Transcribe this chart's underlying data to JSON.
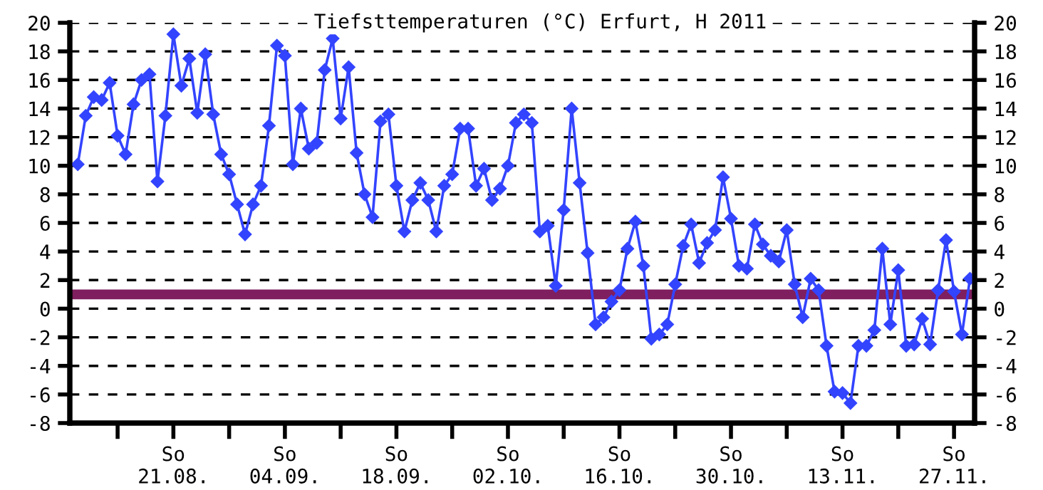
{
  "chart_data": {
    "type": "line",
    "title": "Tiefsttemperaturen (°C) Erfurt, H 2011",
    "x": [
      "2011-08-09",
      "2011-08-10",
      "2011-08-11",
      "2011-08-12",
      "2011-08-13",
      "2011-08-14",
      "2011-08-15",
      "2011-08-16",
      "2011-08-17",
      "2011-08-18",
      "2011-08-19",
      "2011-08-20",
      "2011-08-21",
      "2011-08-22",
      "2011-08-23",
      "2011-08-24",
      "2011-08-25",
      "2011-08-26",
      "2011-08-27",
      "2011-08-28",
      "2011-08-29",
      "2011-08-30",
      "2011-08-31",
      "2011-09-01",
      "2011-09-02",
      "2011-09-03",
      "2011-09-04",
      "2011-09-05",
      "2011-09-06",
      "2011-09-07",
      "2011-09-08",
      "2011-09-09",
      "2011-09-10",
      "2011-09-11",
      "2011-09-12",
      "2011-09-13",
      "2011-09-14",
      "2011-09-15",
      "2011-09-16",
      "2011-09-17",
      "2011-09-18",
      "2011-09-19",
      "2011-09-20",
      "2011-09-21",
      "2011-09-22",
      "2011-09-23",
      "2011-09-24",
      "2011-09-25",
      "2011-09-26",
      "2011-09-27",
      "2011-09-28",
      "2011-09-29",
      "2011-09-30",
      "2011-10-01",
      "2011-10-02",
      "2011-10-03",
      "2011-10-04",
      "2011-10-05",
      "2011-10-06",
      "2011-10-07",
      "2011-10-08",
      "2011-10-09",
      "2011-10-10",
      "2011-10-11",
      "2011-10-12",
      "2011-10-13",
      "2011-10-14",
      "2011-10-15",
      "2011-10-16",
      "2011-10-17",
      "2011-10-18",
      "2011-10-19",
      "2011-10-20",
      "2011-10-21",
      "2011-10-22",
      "2011-10-23",
      "2011-10-24",
      "2011-10-25",
      "2011-10-26",
      "2011-10-27",
      "2011-10-28",
      "2011-10-29",
      "2011-10-30",
      "2011-10-31",
      "2011-11-01",
      "2011-11-02",
      "2011-11-03",
      "2011-11-04",
      "2011-11-05",
      "2011-11-06",
      "2011-11-07",
      "2011-11-08",
      "2011-11-09",
      "2011-11-10",
      "2011-11-11",
      "2011-11-12",
      "2011-11-13",
      "2011-11-14",
      "2011-11-15",
      "2011-11-16",
      "2011-11-17",
      "2011-11-18",
      "2011-11-19",
      "2011-11-20",
      "2011-11-21",
      "2011-11-22",
      "2011-11-23",
      "2011-11-24",
      "2011-11-25",
      "2011-11-26",
      "2011-11-27",
      "2011-11-28",
      "2011-11-29"
    ],
    "series": [
      {
        "color": "#3344ff",
        "values": [
          10.1,
          13.5,
          14.8,
          14.6,
          15.8,
          12.1,
          10.8,
          14.3,
          16.0,
          16.4,
          8.9,
          13.5,
          19.2,
          15.6,
          17.5,
          13.7,
          17.8,
          13.6,
          10.8,
          9.4,
          7.3,
          5.2,
          7.3,
          8.6,
          12.8,
          18.4,
          17.7,
          10.1,
          14.0,
          11.2,
          11.6,
          16.7,
          18.9,
          13.3,
          16.9,
          10.9,
          8.0,
          6.4,
          13.1,
          13.6,
          8.6,
          5.4,
          7.6,
          8.8,
          7.6,
          5.4,
          8.6,
          9.4,
          12.6,
          12.6,
          8.6,
          9.8,
          7.6,
          8.4,
          10.0,
          13.0,
          13.6,
          13.0,
          5.4,
          5.8,
          1.6,
          6.9,
          14.0,
          8.8,
          3.9,
          -1.1,
          -0.6,
          0.5,
          1.3,
          4.2,
          6.1,
          3.0,
          -2.1,
          -1.8,
          -1.1,
          1.7,
          4.4,
          5.9,
          3.2,
          4.6,
          5.5,
          9.2,
          6.3,
          3.0,
          2.8,
          5.9,
          4.5,
          3.7,
          3.3,
          5.5,
          1.7,
          -0.6,
          2.1,
          1.3,
          -2.6,
          -5.8,
          -5.9,
          -6.6,
          -2.6,
          -2.6,
          -1.5,
          4.2,
          -1.1,
          2.7,
          -2.6,
          -2.5,
          -0.7,
          -2.5,
          1.3,
          4.8,
          1.2,
          -1.8,
          2.1
        ]
      }
    ],
    "marker": "diamond",
    "line_style": "solid",
    "ref_lines": [
      {
        "axis": "y",
        "value": 1,
        "color": "#7f1f5f"
      }
    ],
    "xlim": [
      "2011-08-08",
      "2011-11-29T14:00"
    ],
    "xticks": [
      {
        "value": "2011-08-14",
        "label": null
      },
      {
        "value": "2011-08-21",
        "label": "So\n21.08."
      },
      {
        "value": "2011-08-28",
        "label": null
      },
      {
        "value": "2011-09-04",
        "label": "So\n04.09."
      },
      {
        "value": "2011-09-11",
        "label": null
      },
      {
        "value": "2011-09-18",
        "label": "So\n18.09."
      },
      {
        "value": "2011-09-25",
        "label": null
      },
      {
        "value": "2011-10-02",
        "label": "So\n02.10."
      },
      {
        "value": "2011-10-09",
        "label": null
      },
      {
        "value": "2011-10-16",
        "label": "So\n16.10."
      },
      {
        "value": "2011-10-23",
        "label": null
      },
      {
        "value": "2011-10-30",
        "label": "So\n30.10."
      },
      {
        "value": "2011-11-06",
        "label": null
      },
      {
        "value": "2011-11-13",
        "label": "So\n13.11."
      },
      {
        "value": "2011-11-20",
        "label": null
      },
      {
        "value": "2011-11-27",
        "label": "So\n27.11."
      }
    ],
    "ylim": [
      -8,
      20
    ],
    "yticks": [
      -8,
      -6,
      -4,
      -2,
      0,
      2,
      4,
      6,
      8,
      10,
      12,
      14,
      16,
      18,
      20
    ],
    "y2lim": [
      -8,
      20
    ],
    "y2ticks": [
      -8,
      -6,
      -4,
      -2,
      0,
      2,
      4,
      6,
      8,
      10,
      12,
      14,
      16,
      18,
      20
    ],
    "grid": "y"
  }
}
